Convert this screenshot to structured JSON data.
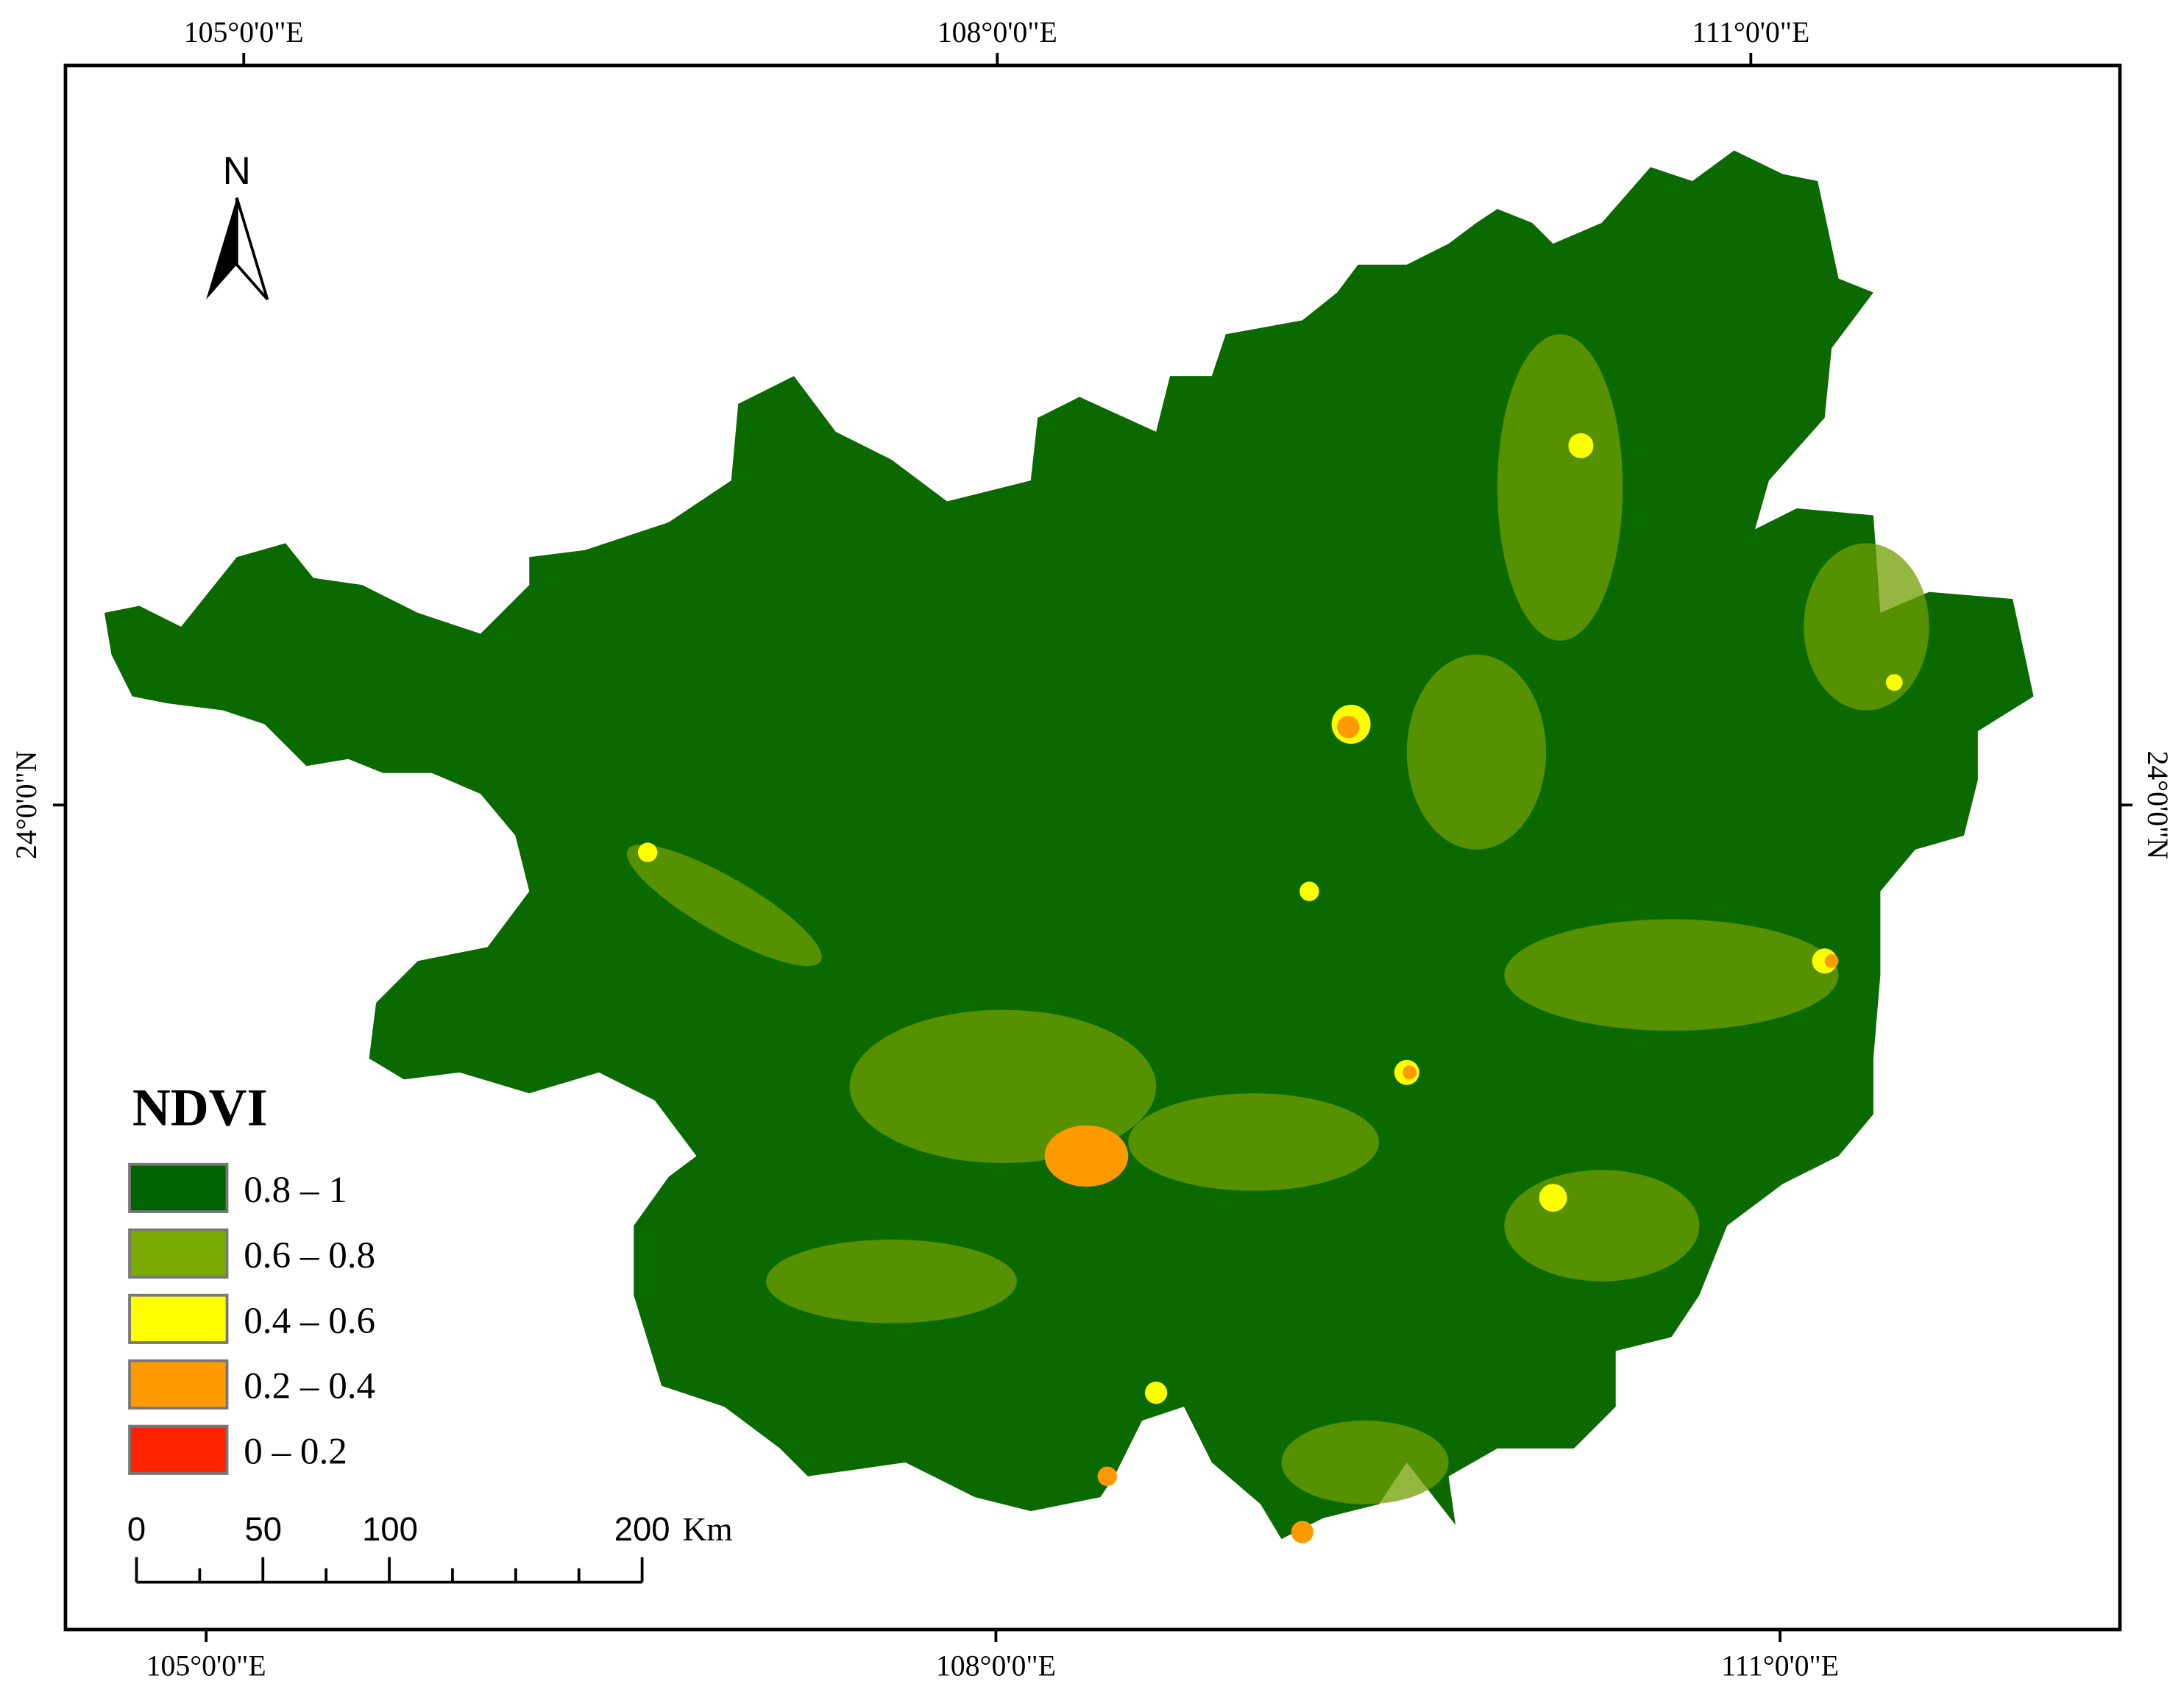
{
  "map": {
    "north_arrow": "N",
    "graticule": {
      "top": [
        "105°0'0\"E",
        "108°0'0\"E",
        "111°0'0\"E"
      ],
      "bottom": [
        "105°0'0\"E",
        "108°0'0\"E",
        "111°0'0\"E"
      ],
      "left": [
        "24°0'0\"N"
      ],
      "right": [
        "24°0'0\"N"
      ]
    },
    "legend": {
      "title": "NDVI",
      "items": [
        {
          "label": "0.8 – 1",
          "color": "#006400"
        },
        {
          "label": "0.6 – 0.8",
          "color": "#7aab00"
        },
        {
          "label": "0.4 – 0.6",
          "color": "#ffff00"
        },
        {
          "label": "0.2 – 0.4",
          "color": "#ff9900"
        },
        {
          "label": "0 – 0.2",
          "color": "#ff2200"
        }
      ]
    },
    "scale_bar": {
      "ticks": [
        "0",
        "50",
        "100",
        "200"
      ],
      "unit": "Km"
    }
  }
}
